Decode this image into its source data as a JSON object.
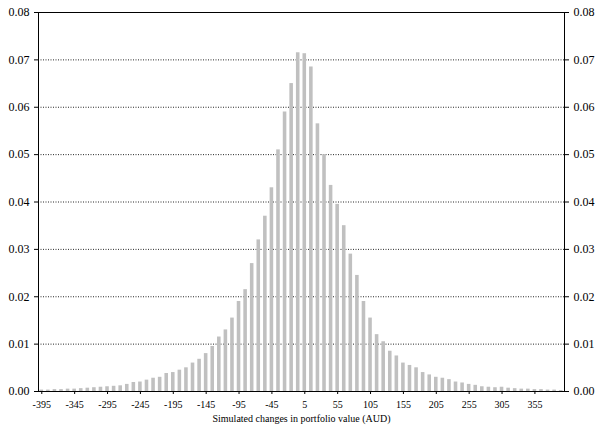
{
  "chart_data": {
    "type": "histogram",
    "x_label": "Simulated changes in portfolio value (AUD)",
    "bins": [
      -400,
      -390,
      -380,
      -370,
      -360,
      -350,
      -340,
      -330,
      -320,
      -310,
      -300,
      -290,
      -280,
      -270,
      -260,
      -250,
      -240,
      -230,
      -220,
      -210,
      -200,
      -190,
      -180,
      -170,
      -160,
      -150,
      -140,
      -130,
      -120,
      -110,
      -100,
      -90,
      -80,
      -70,
      -60,
      -50,
      -40,
      -30,
      -20,
      -10,
      0,
      10,
      20,
      30,
      40,
      50,
      60,
      70,
      80,
      90,
      100,
      110,
      120,
      130,
      140,
      150,
      160,
      170,
      180,
      190,
      200,
      210,
      220,
      230,
      240,
      250,
      260,
      270,
      280,
      290,
      300,
      310,
      320,
      330,
      340,
      350,
      360,
      370,
      380,
      390,
      400
    ],
    "values": [
      0.0003,
      0.0003,
      0.0004,
      0.0004,
      0.0005,
      0.0005,
      0.0006,
      0.0007,
      0.0008,
      0.0009,
      0.001,
      0.0011,
      0.0012,
      0.0015,
      0.0019,
      0.002,
      0.0024,
      0.0028,
      0.003,
      0.0038,
      0.004,
      0.0045,
      0.005,
      0.006,
      0.0068,
      0.008,
      0.0095,
      0.0115,
      0.013,
      0.0155,
      0.019,
      0.0215,
      0.027,
      0.032,
      0.037,
      0.043,
      0.051,
      0.059,
      0.065,
      0.0715,
      0.0713,
      0.0685,
      0.0565,
      0.05,
      0.0435,
      0.0395,
      0.035,
      0.029,
      0.0245,
      0.019,
      0.0155,
      0.012,
      0.0105,
      0.0085,
      0.0075,
      0.006,
      0.0055,
      0.005,
      0.004,
      0.0035,
      0.003,
      0.0028,
      0.0025,
      0.002,
      0.0018,
      0.0015,
      0.0013,
      0.001,
      0.0009,
      0.0008,
      0.0009,
      0.0007,
      0.0006,
      0.0005,
      0.0005,
      0.0004,
      0.0004,
      0.0003,
      0.0003,
      0.0002
    ],
    "color": "#c0c0c0",
    "xlim": [
      -400,
      400
    ],
    "xticks": [
      -395,
      -345,
      -295,
      -245,
      -195,
      -145,
      -95,
      -45,
      5,
      55,
      105,
      155,
      205,
      255,
      305,
      355
    ],
    "ylim": [
      0,
      0.08
    ],
    "yticks": [
      {
        "value": 0,
        "label": "0.00"
      },
      {
        "value": 0.01,
        "label": "0.01"
      },
      {
        "value": 0.02,
        "label": "0.02"
      },
      {
        "value": 0.03,
        "label": "0.03"
      },
      {
        "value": 0.04,
        "label": "0.04"
      },
      {
        "value": 0.05,
        "label": "0.05"
      },
      {
        "value": 0.06,
        "label": "0.06"
      },
      {
        "value": 0.07,
        "label": "0.07"
      },
      {
        "value": 0.08,
        "label": "0.08"
      }
    ],
    "grid": true
  }
}
